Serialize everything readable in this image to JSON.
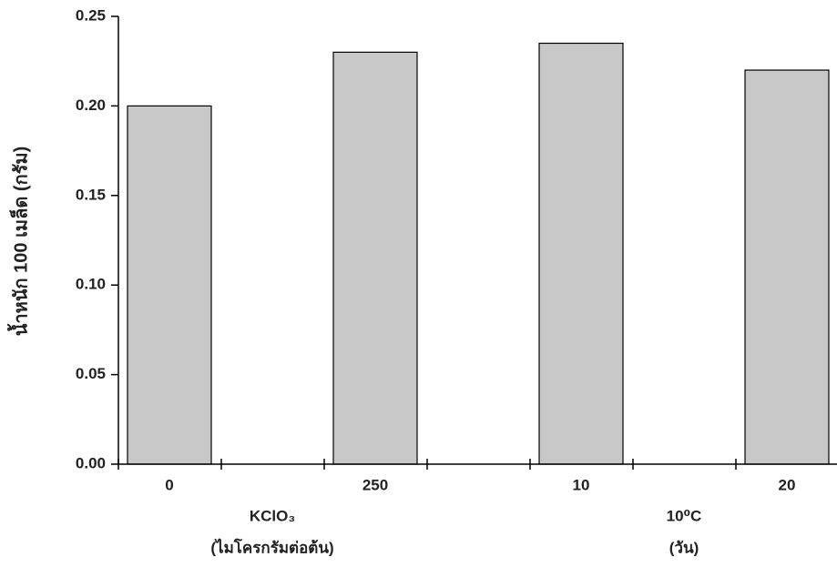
{
  "chart_data": {
    "type": "bar",
    "ylabel": "น้ำหนัก 100 เมล็ด (กรัม)",
    "categories": [
      "0",
      "250",
      "10",
      "20"
    ],
    "values": [
      0.2,
      0.23,
      0.235,
      0.22
    ],
    "color": "#c8c8c8",
    "groups": [
      {
        "name": "KClO₃",
        "unit": "(ไมโครกรัมต่อต้น)"
      },
      {
        "name": "10⁰C",
        "unit": "(วัน)"
      }
    ],
    "ylim": [
      0,
      0.25
    ],
    "yticks": [
      {
        "value": 0,
        "label": "0.00"
      },
      0.05,
      {
        "value": 0.1,
        "label": "0.10"
      },
      0.15,
      {
        "value": 0.2,
        "label": "0.20"
      },
      0.25
    ],
    "grid": false
  }
}
